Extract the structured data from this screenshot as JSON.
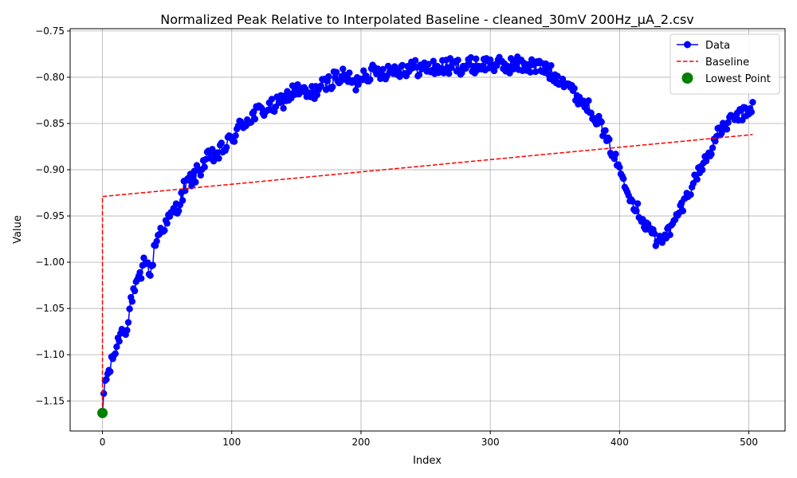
{
  "chart_data": {
    "type": "line",
    "title": "Normalized Peak Relative to Interpolated Baseline - cleaned_30mV 200Hz_µA_2.csv",
    "xlabel": "Index",
    "ylabel": "Value",
    "xlim": [
      -25,
      528
    ],
    "ylim": [
      -1.1825,
      -0.7475
    ],
    "x_ticks": [
      0,
      100,
      200,
      300,
      400,
      500
    ],
    "x_tick_labels": [
      "0",
      "100",
      "200",
      "300",
      "400",
      "500"
    ],
    "y_ticks": [
      -1.15,
      -1.1,
      -1.05,
      -1.0,
      -0.95,
      -0.9,
      -0.85,
      -0.8,
      -0.75
    ],
    "y_tick_labels": [
      "−1.15",
      "−1.10",
      "−1.05",
      "−1.00",
      "−0.95",
      "−0.90",
      "−0.85",
      "−0.80",
      "−0.75"
    ],
    "grid": true,
    "legend_position": "top-right",
    "series": [
      {
        "name": "Data",
        "color": "#0000ff",
        "style": "line-with-circle-markers",
        "anchors": [
          [
            0,
            -1.163
          ],
          [
            1,
            -1.142
          ],
          [
            2,
            -1.128
          ],
          [
            4,
            -1.122
          ],
          [
            6,
            -1.115
          ],
          [
            8,
            -1.103
          ],
          [
            10,
            -1.096
          ],
          [
            12,
            -1.086
          ],
          [
            14,
            -1.075
          ],
          [
            18,
            -1.072
          ],
          [
            20,
            -1.065
          ],
          [
            22,
            -1.04
          ],
          [
            24,
            -1.035
          ],
          [
            26,
            -1.027
          ],
          [
            28,
            -1.02
          ],
          [
            30,
            -1.015
          ],
          [
            32,
            -1.0
          ],
          [
            34,
            -0.996
          ],
          [
            36,
            -1.012
          ],
          [
            38,
            -1.01
          ],
          [
            40,
            -0.985
          ],
          [
            42,
            -0.975
          ],
          [
            45,
            -0.965
          ],
          [
            50,
            -0.957
          ],
          [
            55,
            -0.945
          ],
          [
            60,
            -0.937
          ],
          [
            63,
            -0.92
          ],
          [
            68,
            -0.912
          ],
          [
            72,
            -0.906
          ],
          [
            76,
            -0.898
          ],
          [
            80,
            -0.89
          ],
          [
            85,
            -0.886
          ],
          [
            90,
            -0.883
          ],
          [
            95,
            -0.875
          ],
          [
            100,
            -0.867
          ],
          [
            105,
            -0.856
          ],
          [
            110,
            -0.848
          ],
          [
            115,
            -0.843
          ],
          [
            120,
            -0.838
          ],
          [
            125,
            -0.835
          ],
          [
            130,
            -0.833
          ],
          [
            135,
            -0.83
          ],
          [
            140,
            -0.825
          ],
          [
            145,
            -0.818
          ],
          [
            150,
            -0.814
          ],
          [
            155,
            -0.817
          ],
          [
            160,
            -0.82
          ],
          [
            165,
            -0.814
          ],
          [
            170,
            -0.81
          ],
          [
            175,
            -0.806
          ],
          [
            180,
            -0.8
          ],
          [
            185,
            -0.8
          ],
          [
            190,
            -0.8
          ],
          [
            195,
            -0.81
          ],
          [
            200,
            -0.797
          ],
          [
            210,
            -0.795
          ],
          [
            220,
            -0.793
          ],
          [
            230,
            -0.791
          ],
          [
            240,
            -0.79
          ],
          [
            250,
            -0.79
          ],
          [
            260,
            -0.79
          ],
          [
            270,
            -0.788
          ],
          [
            280,
            -0.788
          ],
          [
            290,
            -0.787
          ],
          [
            300,
            -0.785
          ],
          [
            310,
            -0.788
          ],
          [
            320,
            -0.786
          ],
          [
            330,
            -0.787
          ],
          [
            340,
            -0.79
          ],
          [
            345,
            -0.793
          ],
          [
            350,
            -0.8
          ],
          [
            355,
            -0.802
          ],
          [
            360,
            -0.806
          ],
          [
            365,
            -0.818
          ],
          [
            370,
            -0.825
          ],
          [
            375,
            -0.83
          ],
          [
            380,
            -0.84
          ],
          [
            385,
            -0.85
          ],
          [
            390,
            -0.868
          ],
          [
            395,
            -0.882
          ],
          [
            400,
            -0.9
          ],
          [
            405,
            -0.915
          ],
          [
            410,
            -0.935
          ],
          [
            415,
            -0.945
          ],
          [
            420,
            -0.96
          ],
          [
            425,
            -0.965
          ],
          [
            428,
            -0.98
          ],
          [
            432,
            -0.975
          ],
          [
            436,
            -0.968
          ],
          [
            440,
            -0.965
          ],
          [
            445,
            -0.948
          ],
          [
            450,
            -0.935
          ],
          [
            455,
            -0.92
          ],
          [
            460,
            -0.905
          ],
          [
            465,
            -0.893
          ],
          [
            470,
            -0.88
          ],
          [
            475,
            -0.864
          ],
          [
            480,
            -0.855
          ],
          [
            485,
            -0.848
          ],
          [
            490,
            -0.843
          ],
          [
            495,
            -0.84
          ],
          [
            500,
            -0.836
          ],
          [
            503,
            -0.83
          ]
        ]
      },
      {
        "name": "Baseline",
        "color": "#ff0000",
        "style": "dashed-line",
        "points": [
          [
            0,
            -1.163
          ],
          [
            0,
            -0.929
          ],
          [
            503,
            -0.862
          ]
        ]
      },
      {
        "name": "Lowest Point",
        "color": "#008000",
        "style": "large-circle",
        "points": [
          [
            0,
            -1.163
          ]
        ]
      }
    ]
  }
}
